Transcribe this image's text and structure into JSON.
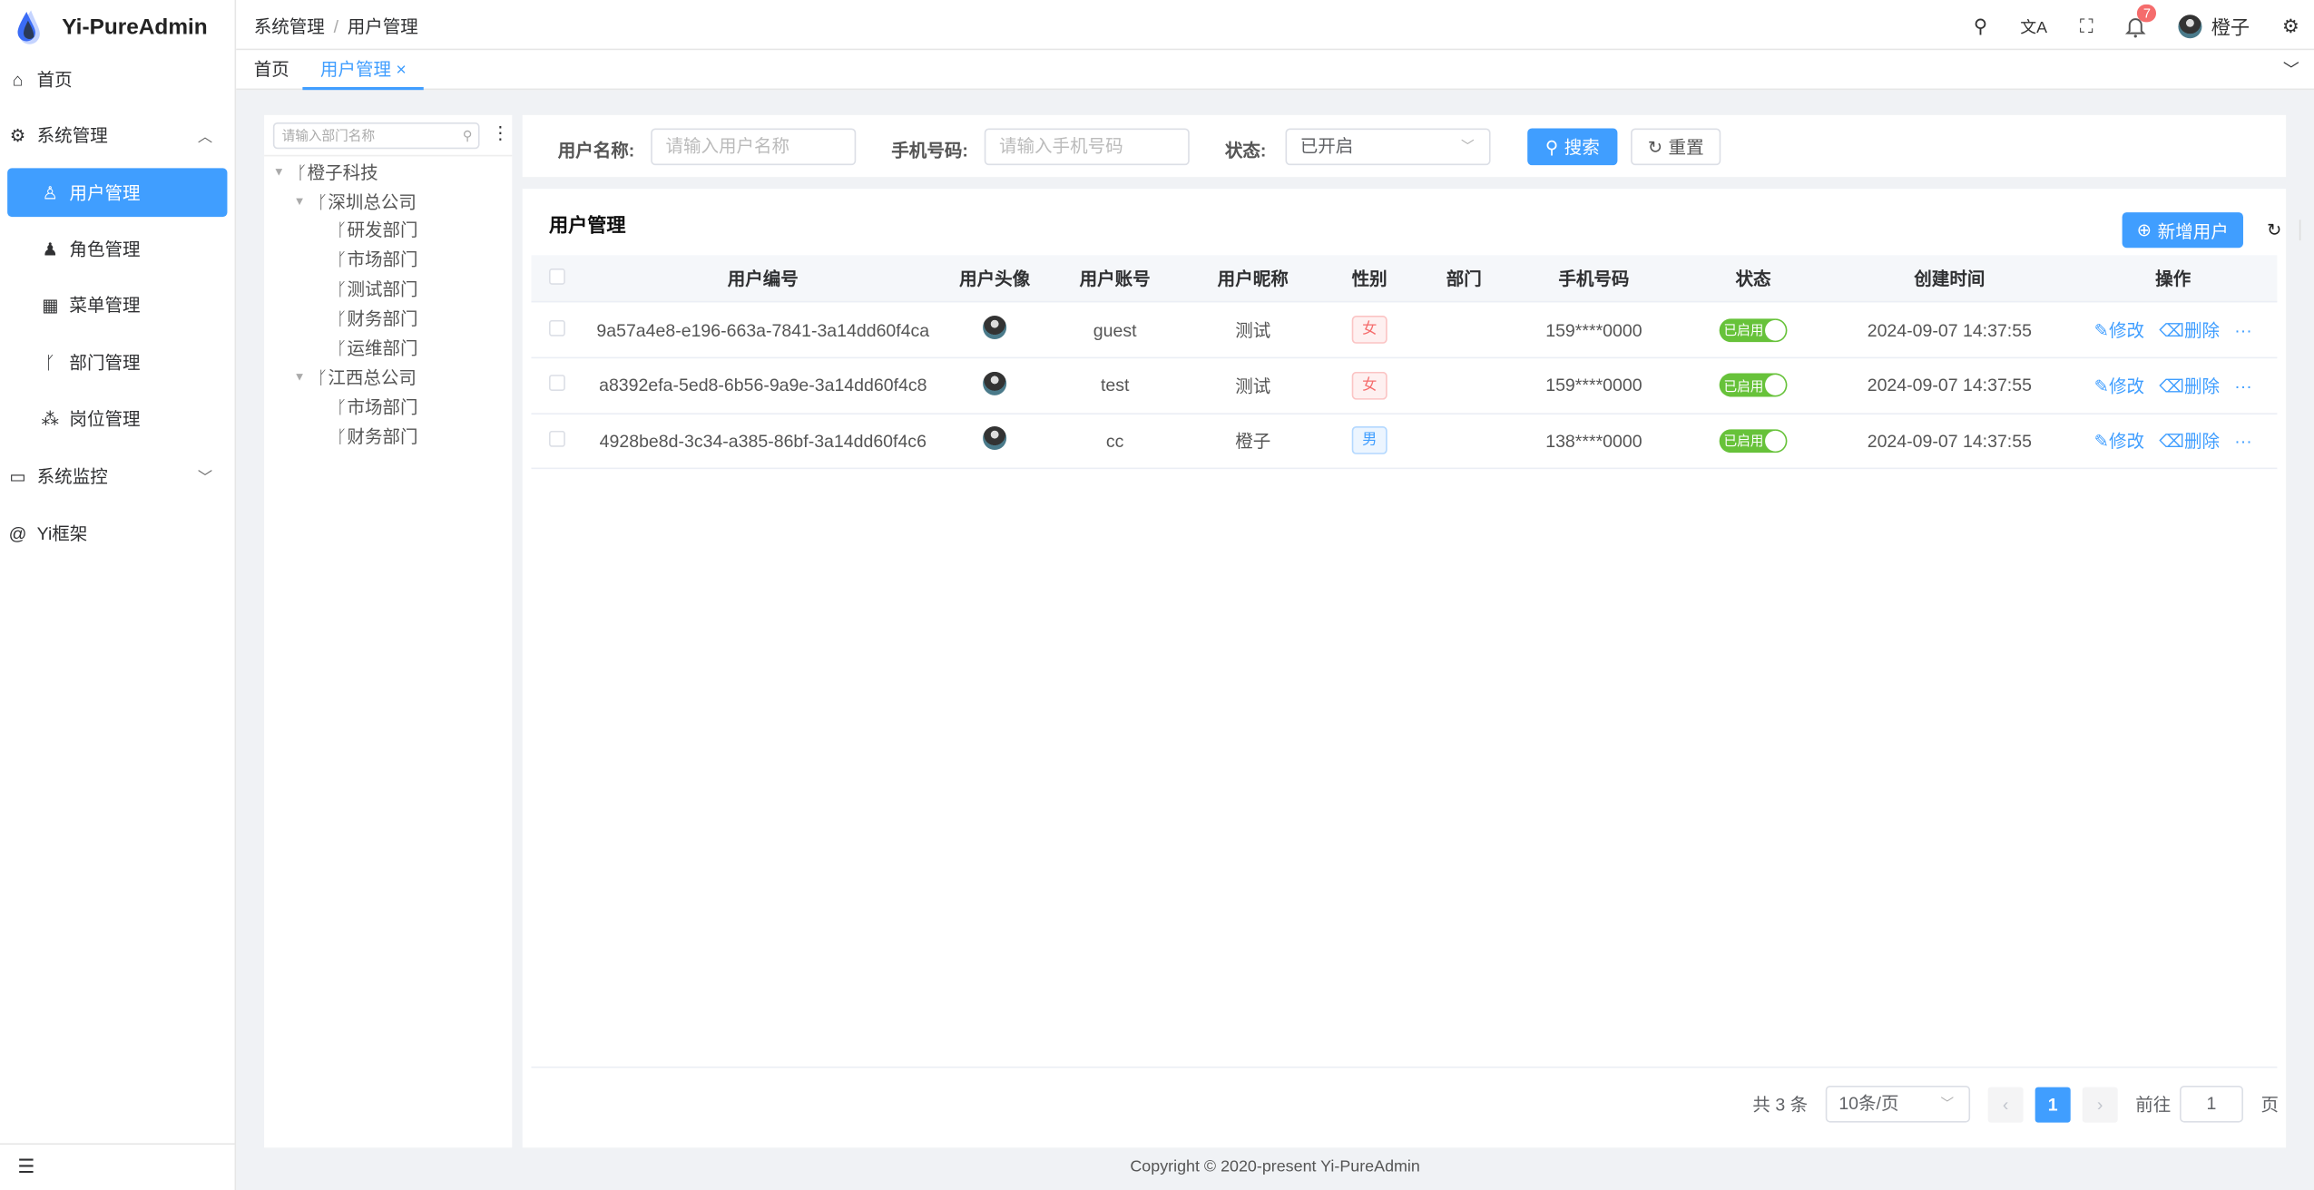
{
  "app": {
    "title": "Yi-PureAdmin",
    "accent": "#409eff"
  },
  "sidebar": {
    "items": [
      {
        "label": "首页",
        "icon": "home-icon"
      },
      {
        "label": "系统管理",
        "icon": "gear-icon"
      },
      {
        "label": "用户管理",
        "icon": "user-icon",
        "active": true
      },
      {
        "label": "角色管理",
        "icon": "role-icon"
      },
      {
        "label": "菜单管理",
        "icon": "grid-icon"
      },
      {
        "label": "部门管理",
        "icon": "branch-icon"
      },
      {
        "label": "岗位管理",
        "icon": "org-icon"
      },
      {
        "label": "系统监控",
        "icon": "monitor-icon"
      },
      {
        "label": "Yi框架",
        "icon": "at-icon"
      }
    ]
  },
  "header": {
    "breadcrumb": [
      "系统管理",
      "用户管理"
    ],
    "notification_count": "7",
    "username": "橙子"
  },
  "tabs": [
    {
      "label": "首页"
    },
    {
      "label": "用户管理",
      "active": true
    }
  ],
  "tree": {
    "placeholder": "请输入部门名称",
    "nodes": [
      "橙子科技",
      "深圳总公司",
      "研发部门",
      "市场部门",
      "测试部门",
      "财务部门",
      "运维部门",
      "江西总公司",
      "市场部门",
      "财务部门"
    ]
  },
  "search": {
    "username_label": "用户名称:",
    "username_placeholder": "请输入用户名称",
    "phone_label": "手机号码:",
    "phone_placeholder": "请输入手机号码",
    "status_label": "状态:",
    "status_value": "已开启",
    "search_btn": "搜索",
    "reset_btn": "重置"
  },
  "table": {
    "title": "用户管理",
    "add_btn": "新增用户",
    "columns": [
      "用户编号",
      "用户头像",
      "用户账号",
      "用户昵称",
      "性别",
      "部门",
      "手机号码",
      "状态",
      "创建时间",
      "操作"
    ],
    "rows": [
      {
        "id": "9a57a4e8-e196-663a-7841-3a14dd60f4ca",
        "account": "guest",
        "nickname": "测试",
        "gender": "女",
        "dept": "",
        "phone": "159****0000",
        "status": "已启用",
        "created": "2024-09-07 14:37:55"
      },
      {
        "id": "a8392efa-5ed8-6b56-9a9e-3a14dd60f4c8",
        "account": "test",
        "nickname": "测试",
        "gender": "女",
        "dept": "",
        "phone": "159****0000",
        "status": "已启用",
        "created": "2024-09-07 14:37:55"
      },
      {
        "id": "4928be8d-3c34-a385-86bf-3a14dd60f4c6",
        "account": "cc",
        "nickname": "橙子",
        "gender": "男",
        "dept": "",
        "phone": "138****0000",
        "status": "已启用",
        "created": "2024-09-07 14:37:55"
      }
    ],
    "edit": "修改",
    "delete": "删除",
    "more": "···"
  },
  "pagination": {
    "total": "共 3 条",
    "page_size": "10条/页",
    "current": "1",
    "goto_label": "前往",
    "goto_value": "1",
    "page_suffix": "页"
  },
  "footer": "Copyright © 2020-present Yi-PureAdmin"
}
